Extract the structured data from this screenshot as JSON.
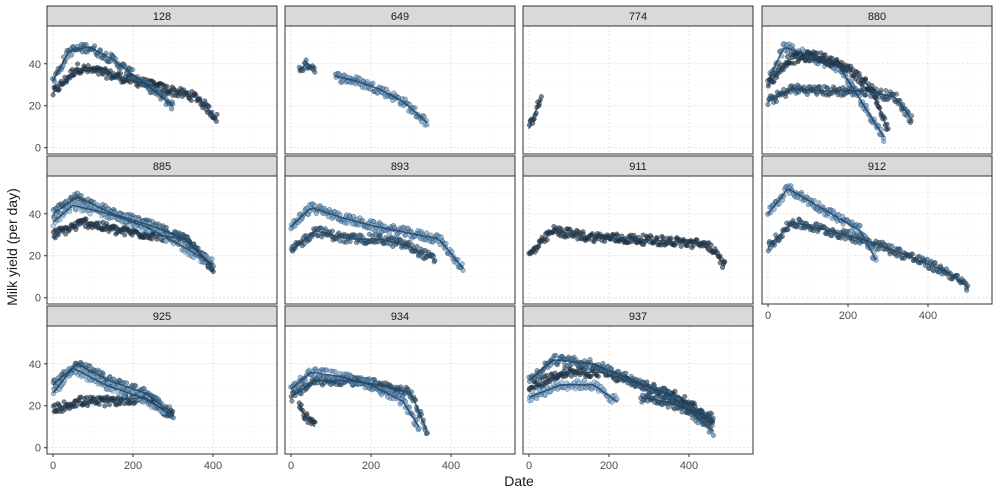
{
  "chart_data": {
    "type": "scatter",
    "xlabel": "Date",
    "ylabel": "Milk yield (per day)",
    "xlim": [
      -15,
      560
    ],
    "ylim": [
      -3,
      58
    ],
    "x_ticks": [
      0,
      200,
      400
    ],
    "y_ticks": [
      0,
      20,
      40
    ],
    "grid": true,
    "legend": "none",
    "facet_layout": {
      "ncol": 4,
      "nrow": 3
    },
    "colors": [
      "#1c2e40",
      "#2f5573",
      "#3f6f95",
      "#5b93c3",
      "#7fb2dd"
    ],
    "point_opacity": 0.6,
    "trend_color": "#26445e",
    "panels": [
      {
        "id": "128",
        "series": [
          {
            "x": [
              0,
              60,
              120,
              200,
              280,
              360,
              410
            ],
            "y": [
              26,
              38,
              36,
              32,
              28,
              24,
              14
            ]
          },
          {
            "x": [
              0,
              40,
              90,
              150,
              220,
              300
            ],
            "y": [
              32,
              46,
              48,
              42,
              32,
              20
            ]
          }
        ]
      },
      {
        "id": "649",
        "series": [
          {
            "x": [
              20,
              40,
              60
            ],
            "y": [
              37,
              40,
              38
            ]
          },
          {
            "x": [
              110,
              160,
              220,
              280,
              340
            ],
            "y": [
              34,
              32,
              28,
              22,
              12
            ]
          }
        ]
      },
      {
        "id": "774",
        "series": [
          {
            "x": [
              0,
              10,
              20,
              30
            ],
            "y": [
              9,
              14,
              19,
              23
            ]
          }
        ]
      },
      {
        "id": "880",
        "series": [
          {
            "x": [
              0,
              60,
              150,
              250,
              320,
              360
            ],
            "y": [
              22,
              28,
              27,
              27,
              24,
              13
            ]
          },
          {
            "x": [
              0,
              40,
              100,
              180,
              240,
              290
            ],
            "y": [
              32,
              48,
              44,
              38,
              20,
              5
            ]
          },
          {
            "x": [
              0,
              50,
              120,
              200,
              260,
              300
            ],
            "y": [
              30,
              42,
              44,
              38,
              28,
              8
            ]
          }
        ]
      },
      {
        "id": "885",
        "series": [
          {
            "x": [
              0,
              80,
              160,
              250,
              330,
              400
            ],
            "y": [
              30,
              36,
              32,
              30,
              28,
              14
            ]
          },
          {
            "x": [
              0,
              60,
              150,
              250,
              330,
              400
            ],
            "y": [
              40,
              48,
              40,
              34,
              28,
              15
            ]
          },
          {
            "x": [
              0,
              50,
              140,
              230,
              310,
              400
            ],
            "y": [
              36,
              44,
              40,
              34,
              26,
              16
            ]
          }
        ]
      },
      {
        "id": "893",
        "series": [
          {
            "x": [
              0,
              60,
              140,
              220,
              290,
              360
            ],
            "y": [
              22,
              32,
              28,
              28,
              25,
              18
            ]
          },
          {
            "x": [
              0,
              50,
              130,
              210,
              290,
              370,
              430
            ],
            "y": [
              34,
              43,
              38,
              34,
              31,
              28,
              14
            ]
          }
        ]
      },
      {
        "id": "911",
        "series": [
          {
            "x": [
              0,
              60,
              150,
              250,
              350,
              450,
              490
            ],
            "y": [
              20,
              32,
              29,
              28,
              27,
              25,
              15
            ]
          }
        ]
      },
      {
        "id": "912",
        "series": [
          {
            "x": [
              0,
              60,
              150,
              250,
              350,
              450,
              500
            ],
            "y": [
              24,
              36,
              32,
              27,
              20,
              12,
              5
            ]
          },
          {
            "x": [
              0,
              50,
              140,
              230,
              270
            ],
            "y": [
              40,
              52,
              42,
              32,
              18
            ]
          }
        ]
      },
      {
        "id": "925",
        "series": [
          {
            "x": [
              0,
              60,
              140,
              230,
              300
            ],
            "y": [
              18,
              22,
              22,
              24,
              15
            ]
          },
          {
            "x": [
              0,
              60,
              140,
              230,
              300
            ],
            "y": [
              30,
              40,
              32,
              26,
              16
            ]
          },
          {
            "x": [
              0,
              50,
              130,
              220,
              280
            ],
            "y": [
              26,
              38,
              30,
              24,
              18
            ]
          }
        ]
      },
      {
        "id": "934",
        "series": [
          {
            "x": [
              0,
              60,
              140,
              220,
              300,
              340
            ],
            "y": [
              24,
              32,
              32,
              30,
              26,
              8
            ]
          },
          {
            "x": [
              0,
              50,
              120,
              200,
              280,
              320
            ],
            "y": [
              28,
              36,
              34,
              30,
              22,
              10
            ]
          },
          {
            "x": [
              20,
              40,
              60
            ],
            "y": [
              20,
              14,
              10
            ]
          }
        ]
      },
      {
        "id": "937",
        "series": [
          {
            "x": [
              0,
              80,
              180,
              280,
              380,
              460
            ],
            "y": [
              28,
              36,
              36,
              30,
              24,
              12
            ]
          },
          {
            "x": [
              0,
              60,
              160,
              260,
              360,
              460
            ],
            "y": [
              32,
              42,
              40,
              32,
              24,
              8
            ]
          },
          {
            "x": [
              0,
              80,
              160,
              220
            ],
            "y": [
              24,
              30,
              30,
              22
            ]
          },
          {
            "x": [
              280,
              340,
              400,
              460
            ],
            "y": [
              24,
              22,
              18,
              14
            ]
          }
        ]
      }
    ]
  }
}
